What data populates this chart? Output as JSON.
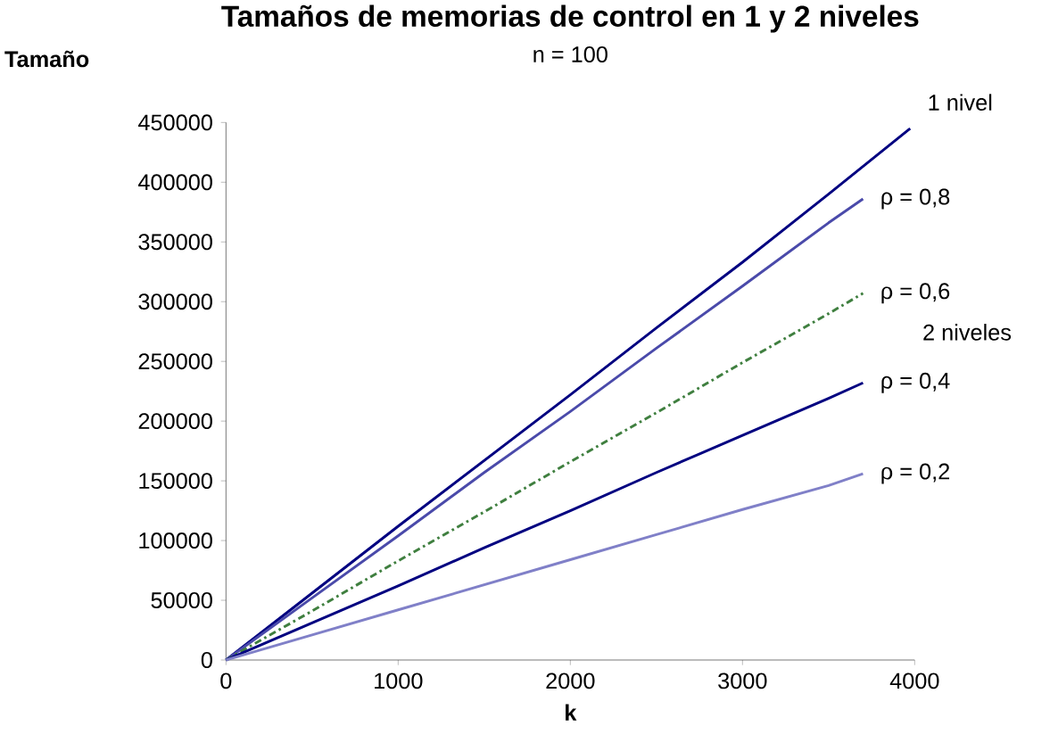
{
  "chart_data": {
    "type": "line",
    "title": "Tamaños de memorias de control en 1 y 2 niveles",
    "subtitle": "n = 100",
    "xlabel": "k",
    "ylabel": "Tamaño",
    "annotations": [
      "2  niveles"
    ],
    "xlim": [
      0,
      4000
    ],
    "xticks": [
      0,
      1000,
      2000,
      3000,
      4000
    ],
    "ylim": [
      0,
      450000
    ],
    "yticks": [
      0,
      50000,
      100000,
      150000,
      200000,
      250000,
      300000,
      350000,
      400000,
      450000
    ],
    "grid": false,
    "legend": false,
    "series": [
      {
        "name": "1 nivel",
        "color": "#000080",
        "line_style": "solid",
        "x": [
          0,
          500,
          1000,
          1500,
          2000,
          2500,
          3000,
          3500,
          3974
        ],
        "values": [
          0,
          56000,
          112000,
          167000,
          222000,
          278000,
          333000,
          390000,
          445000
        ]
      },
      {
        "name": "ρ = 0,8",
        "color": "#4a4aaa",
        "line_style": "solid",
        "x": [
          0,
          500,
          1000,
          1500,
          2000,
          2500,
          3000,
          3500,
          3700
        ],
        "values": [
          0,
          52000,
          104000,
          157000,
          208000,
          261000,
          313000,
          366000,
          386000
        ]
      },
      {
        "name": "ρ = 0,6",
        "color": "#3f7f3f",
        "line_style": "dashed",
        "x": [
          0,
          500,
          1000,
          1500,
          2000,
          2500,
          3000,
          3500,
          3700
        ],
        "values": [
          0,
          41000,
          83000,
          124000,
          166000,
          207000,
          249000,
          290000,
          307000
        ]
      },
      {
        "name": "ρ = 0,4",
        "color": "#000080",
        "line_style": "solid",
        "x": [
          0,
          500,
          1000,
          1500,
          2000,
          2500,
          3000,
          3500,
          3700
        ],
        "values": [
          0,
          31000,
          62000,
          94000,
          125000,
          157000,
          188000,
          219000,
          232000
        ]
      },
      {
        "name": "ρ = 0,2",
        "color": "#8080c8",
        "line_style": "solid",
        "x": [
          0,
          500,
          1000,
          1500,
          2000,
          2500,
          3000,
          3500,
          3700
        ],
        "values": [
          0,
          21000,
          42000,
          63000,
          84000,
          105000,
          126000,
          146000,
          156000
        ]
      }
    ]
  }
}
